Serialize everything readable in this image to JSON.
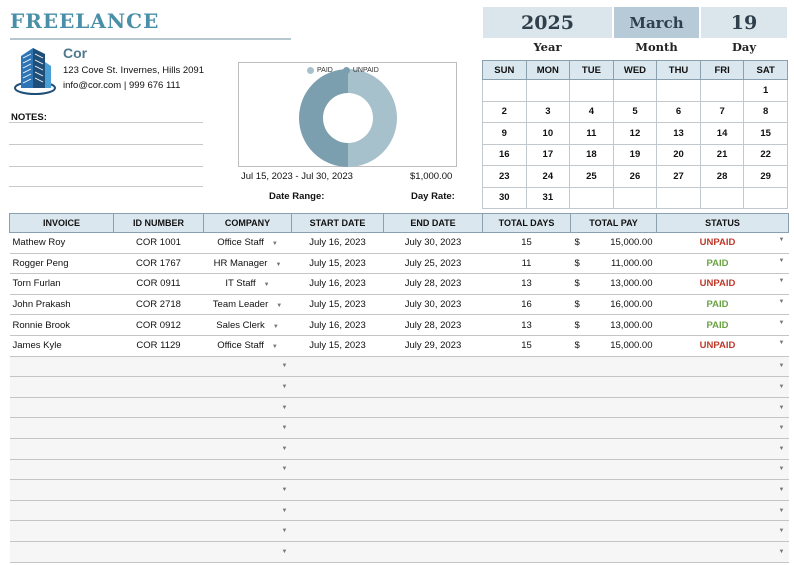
{
  "title": "FREELANCE",
  "company": {
    "name": "Cor",
    "address": "123 Cove St. Invernes, Hills 2091",
    "contact": "info@cor.com | 999 676 111",
    "logo_icon": "building-icon"
  },
  "notes_label": "NOTES:",
  "chart_data": {
    "type": "pie",
    "variant": "donut",
    "categories": [
      "PAID",
      "UNPAID"
    ],
    "values": [
      43000,
      43000
    ],
    "colors": [
      "#a7c1cc",
      "#7b9faf"
    ],
    "title": "",
    "legend": "top"
  },
  "range_value": "Jul 15, 2023 - Jul 30, 2023",
  "rate_value": "$1,000.00",
  "range_label": "Date Range:",
  "rate_label": "Day Rate:",
  "date": {
    "year": "2025",
    "month": "March",
    "day": "19",
    "year_label": "Year",
    "month_label": "Month",
    "day_label": "Day"
  },
  "calendar": {
    "headers": [
      "SUN",
      "MON",
      "TUE",
      "WED",
      "THU",
      "FRI",
      "SAT"
    ],
    "weeks": [
      [
        "",
        "",
        "",
        "",
        "",
        "",
        "1"
      ],
      [
        "2",
        "3",
        "4",
        "5",
        "6",
        "7",
        "8"
      ],
      [
        "9",
        "10",
        "11",
        "12",
        "13",
        "14",
        "15"
      ],
      [
        "16",
        "17",
        "18",
        "19",
        "20",
        "21",
        "22"
      ],
      [
        "23",
        "24",
        "25",
        "26",
        "27",
        "28",
        "29"
      ],
      [
        "30",
        "31",
        "",
        "",
        "",
        "",
        ""
      ]
    ]
  },
  "table": {
    "headers": [
      "INVOICE",
      "ID NUMBER",
      "COMPANY",
      "START DATE",
      "END DATE",
      "TOTAL DAYS",
      "TOTAL PAY",
      "STATUS"
    ],
    "currency": "$",
    "rows": [
      {
        "invoice": "Mathew Roy",
        "id": "COR 1001",
        "company": "Office Staff",
        "start": "July 16, 2023",
        "end": "July 30, 2023",
        "days": "15",
        "pay": "15,000.00",
        "status": "UNPAID"
      },
      {
        "invoice": "Rogger Peng",
        "id": "COR 1767",
        "company": "HR Manager",
        "start": "July 15, 2023",
        "end": "July 25, 2023",
        "days": "11",
        "pay": "11,000.00",
        "status": "PAID"
      },
      {
        "invoice": "Torn Furlan",
        "id": "COR 0911",
        "company": "IT Staff",
        "start": "July 16, 2023",
        "end": "July 28, 2023",
        "days": "13",
        "pay": "13,000.00",
        "status": "UNPAID"
      },
      {
        "invoice": "John Prakash",
        "id": "COR 2718",
        "company": "Team Leader",
        "start": "July 15, 2023",
        "end": "July 30, 2023",
        "days": "16",
        "pay": "16,000.00",
        "status": "PAID"
      },
      {
        "invoice": "Ronnie Brook",
        "id": "COR 0912",
        "company": "Sales Clerk",
        "start": "July 16, 2023",
        "end": "July 28, 2023",
        "days": "13",
        "pay": "13,000.00",
        "status": "PAID"
      },
      {
        "invoice": "James Kyle",
        "id": "COR  1129",
        "company": "Office Staff",
        "start": "July 15, 2023",
        "end": "July 29, 2023",
        "days": "15",
        "pay": "15,000.00",
        "status": "UNPAID"
      }
    ],
    "empty_rows": 10
  },
  "colors": {
    "accent": "#4a8fa8",
    "header_bg": "#dbe7ef",
    "paid": "#6aa344",
    "unpaid": "#c0392b"
  }
}
